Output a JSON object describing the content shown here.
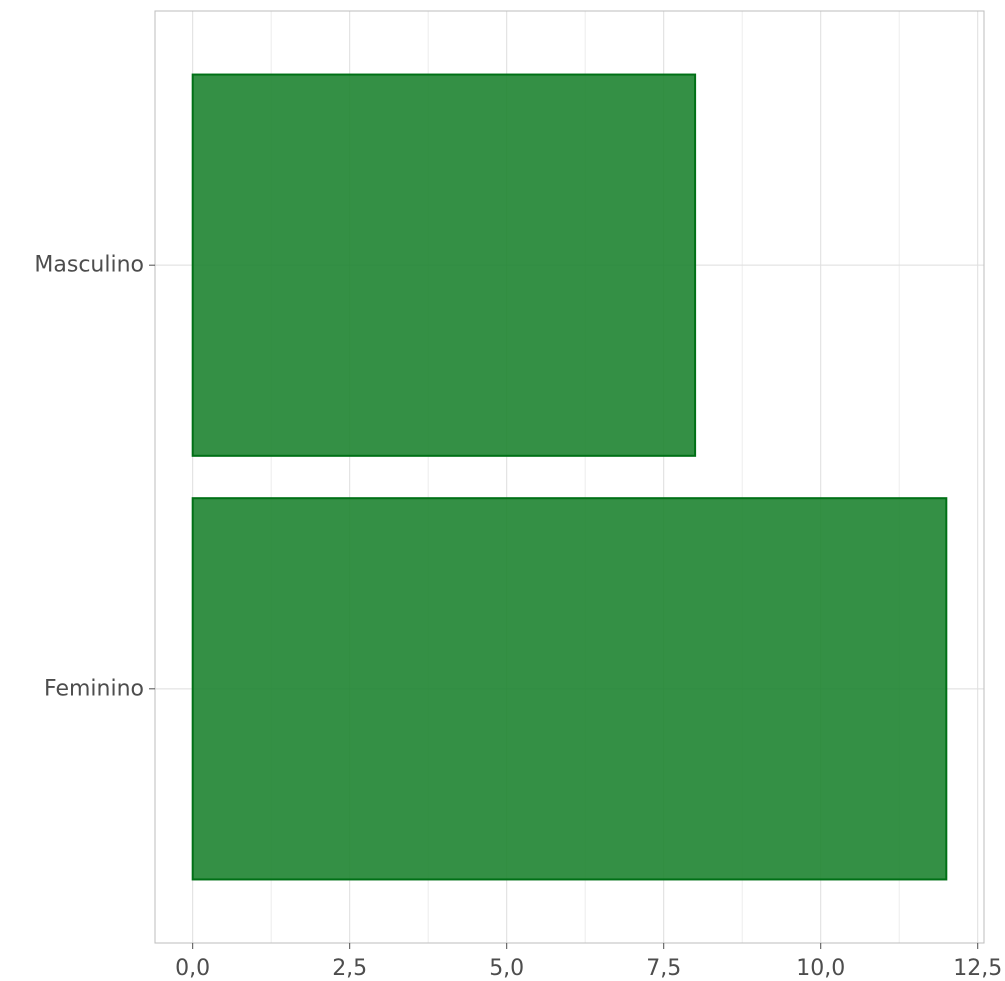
{
  "chart_data": {
    "type": "bar",
    "orientation": "horizontal",
    "categories": [
      "Feminino",
      "Masculino"
    ],
    "values": [
      12,
      8
    ],
    "xlim": [
      -0.6,
      12.6
    ],
    "x_ticks": [
      0,
      2.5,
      5,
      7.5,
      10,
      12.5
    ],
    "x_tick_labels": [
      "0,0",
      "2,5",
      "5,0",
      "7,5",
      "10,0",
      "12,5"
    ],
    "title": "",
    "xlabel": "",
    "ylabel": "",
    "grid": true,
    "legend": "none",
    "colors": {
      "bar_fill": "#1e8431",
      "bar_stroke": "#007016",
      "axis_text": "#4d4d4d"
    }
  }
}
